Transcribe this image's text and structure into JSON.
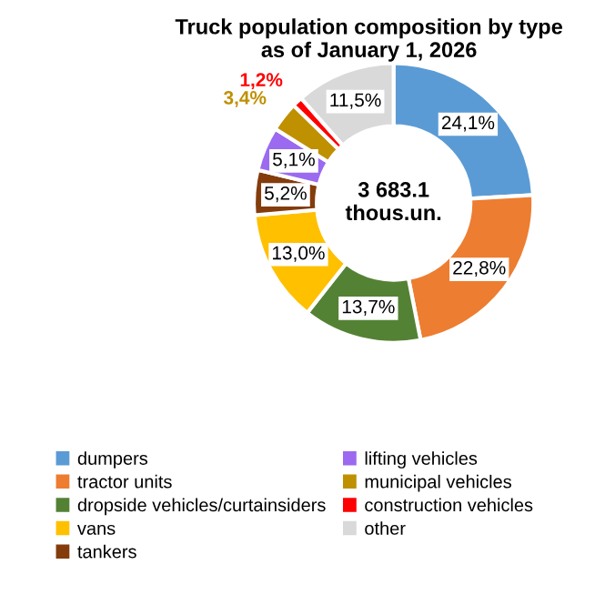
{
  "chart_data": {
    "type": "donut",
    "title": "Truck population composition by type\nas of January 1, 2026",
    "categories": [
      "dumpers",
      "tractor units",
      "dropside vehicles/curtainsiders",
      "vans",
      "tankers",
      "lifting vehicles",
      "municipal vehicles",
      "construction vehicles",
      "other"
    ],
    "values": [
      24.1,
      22.8,
      13.7,
      13.0,
      5.2,
      5.1,
      3.4,
      1.2,
      11.5
    ],
    "colors": [
      "#5b9bd5",
      "#ed7d31",
      "#548235",
      "#ffc000",
      "#843c0c",
      "#9b6af0",
      "#bf9000",
      "#ff0000",
      "#d9d9d9"
    ],
    "value_labels": [
      "24,1%",
      "22,8%",
      "13,7%",
      "13,0%",
      "5,2%",
      "5,1%",
      "3,4%",
      "1,2%",
      "11,5%"
    ],
    "annotations": [
      "3 683.1\nthous.un."
    ],
    "legend": "bottom"
  }
}
